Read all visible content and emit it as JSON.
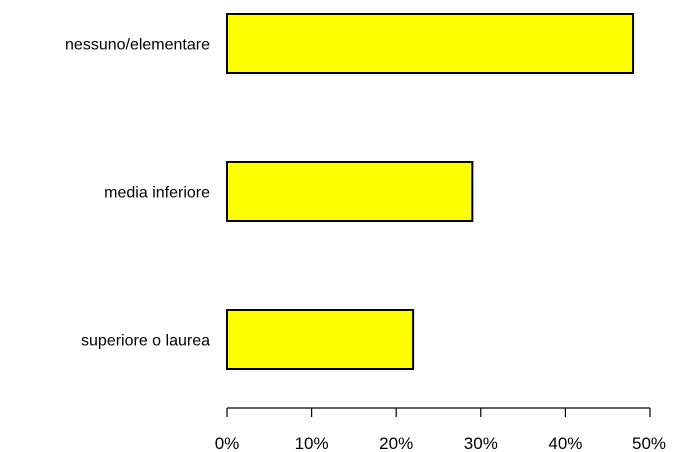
{
  "chart_data": {
    "type": "bar",
    "orientation": "horizontal",
    "categories": [
      "nessuno/elementare",
      "media inferiore",
      "superiore o laurea"
    ],
    "values": [
      48,
      29,
      22
    ],
    "xlim": [
      0,
      50
    ],
    "xticks": [
      0,
      10,
      20,
      30,
      40,
      50
    ],
    "tick_labels": [
      "0%",
      "10%",
      "20%",
      "30%",
      "40%",
      "50%"
    ],
    "bar_color": "#ffff00",
    "grid": false,
    "title": "",
    "xlabel": "",
    "ylabel": ""
  }
}
